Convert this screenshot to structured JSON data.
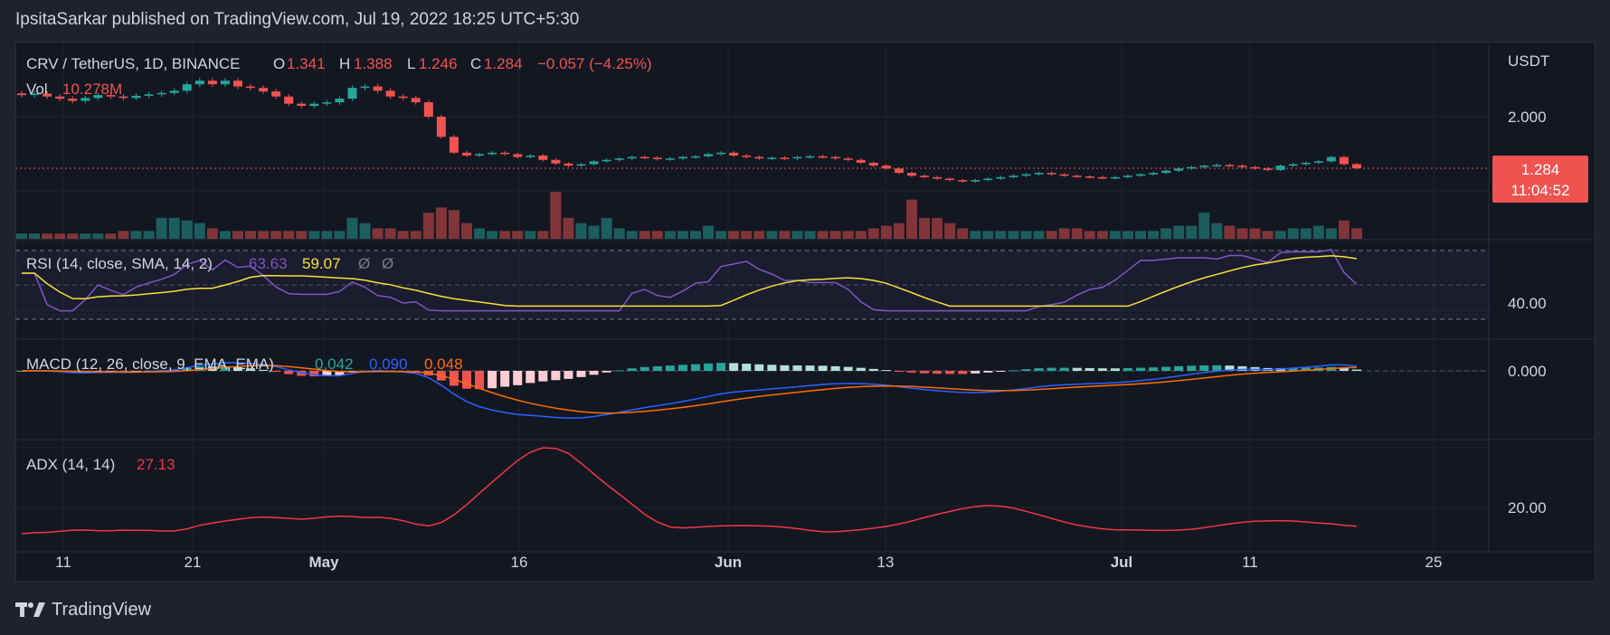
{
  "header": {
    "publisher": "IpsitaSarkar published on TradingView.com, Jul 19, 2022 18:25 UTC+5:30"
  },
  "footer": {
    "brand": "TradingView"
  },
  "colors": {
    "up": "#26a69a",
    "down": "#ef5350",
    "rsi": "#7e57c2",
    "rsi_sma": "#f7e13b",
    "macd": "#2962ff",
    "signal": "#ff6d00",
    "adx": "#f23645"
  },
  "chart_data": [
    {
      "type": "candlestick",
      "title": "CRV / TetherUS, 1D, BINANCE",
      "ohlc_label": {
        "o": "O",
        "o_val": "1.341",
        "h": "H",
        "h_val": "1.388",
        "l": "L",
        "l_val": "1.246",
        "c": "C",
        "c_val": "1.284",
        "chg": "−0.057 (−4.25%)"
      },
      "currency": "USDT",
      "price_ticks": [
        "2.000"
      ],
      "last_price": "1.284",
      "countdown": "11:04:52",
      "volume_label": "Vol",
      "volume_value": "10.278M",
      "x_ticks": [
        "11",
        "21",
        "May",
        "16",
        "Jun",
        "13",
        "Jul",
        "11",
        "25"
      ],
      "close_series": [
        2.3,
        2.32,
        2.28,
        2.25,
        2.22,
        2.26,
        2.3,
        2.28,
        2.26,
        2.29,
        2.31,
        2.33,
        2.36,
        2.45,
        2.5,
        2.45,
        2.5,
        2.42,
        2.4,
        2.35,
        2.28,
        2.18,
        2.15,
        2.18,
        2.2,
        2.25,
        2.4,
        2.42,
        2.36,
        2.28,
        2.26,
        2.2,
        2.0,
        1.72,
        1.5,
        1.46,
        1.48,
        1.5,
        1.48,
        1.44,
        1.46,
        1.4,
        1.35,
        1.32,
        1.34,
        1.38,
        1.4,
        1.42,
        1.44,
        1.43,
        1.41,
        1.42,
        1.44,
        1.45,
        1.48,
        1.5,
        1.46,
        1.44,
        1.42,
        1.43,
        1.42,
        1.44,
        1.45,
        1.44,
        1.42,
        1.4,
        1.36,
        1.32,
        1.28,
        1.22,
        1.18,
        1.16,
        1.14,
        1.12,
        1.1,
        1.12,
        1.14,
        1.16,
        1.18,
        1.2,
        1.22,
        1.2,
        1.18,
        1.17,
        1.16,
        1.15,
        1.16,
        1.18,
        1.2,
        1.22,
        1.25,
        1.28,
        1.3,
        1.32,
        1.33,
        1.32,
        1.3,
        1.28,
        1.26,
        1.32,
        1.34,
        1.36,
        1.38,
        1.44,
        1.341,
        1.284
      ],
      "volume_series": [
        2,
        2,
        2,
        2,
        2,
        2,
        2,
        2,
        3,
        3,
        3,
        8,
        8,
        7,
        6,
        4,
        3,
        3,
        3,
        3,
        3,
        3,
        3,
        3,
        3,
        3,
        8,
        6,
        4,
        4,
        3,
        3,
        10,
        12,
        11,
        6,
        4,
        3,
        3,
        3,
        3,
        3,
        18,
        8,
        6,
        5,
        8,
        4,
        3,
        3,
        3,
        3,
        3,
        3,
        5,
        3,
        3,
        3,
        3,
        3,
        3,
        3,
        3,
        3,
        3,
        3,
        3,
        4,
        5,
        6,
        15,
        8,
        8,
        6,
        4,
        3,
        3,
        3,
        3,
        3,
        3,
        3,
        4,
        4,
        3,
        3,
        3,
        3,
        3,
        3,
        4,
        5,
        5,
        10,
        6,
        5,
        4,
        4,
        3,
        3,
        4,
        4,
        5,
        4,
        7,
        4
      ],
      "rsi": {
        "label": "RSI (14, close, SMA, 14, 2)",
        "rsi_val": "63.63",
        "sma_val": "59.07",
        "na1": "Ø",
        "na2": "Ø",
        "tick": "40.00"
      },
      "macd": {
        "label": "MACD (12, 26, close, 9, EMA, EMA)",
        "hist_val": "0.042",
        "macd_val": "0.090",
        "signal_val": "0.048",
        "tick": "0.000"
      },
      "adx": {
        "label": "ADX (14, 14)",
        "value": "27.13",
        "tick": "20.00"
      }
    }
  ]
}
